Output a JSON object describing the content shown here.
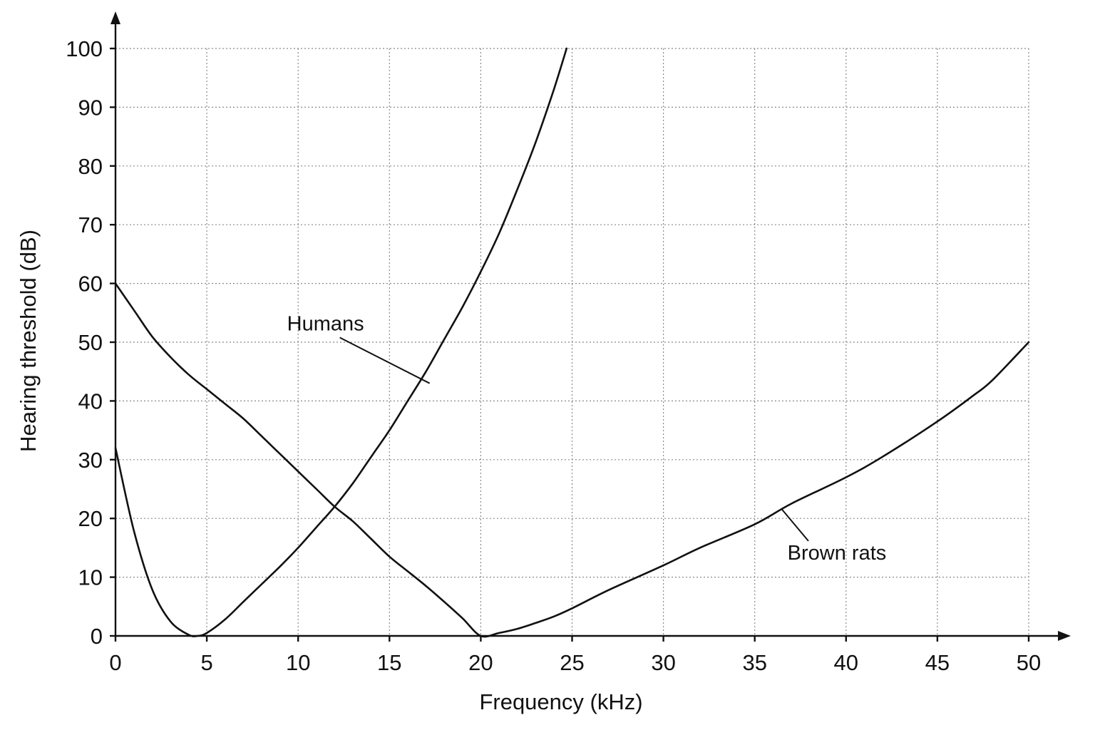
{
  "chart_data": {
    "type": "line",
    "xlabel": "Frequency (kHz)",
    "ylabel": "Hearing threshold (dB)",
    "xlim": [
      0,
      50
    ],
    "ylim": [
      0,
      100
    ],
    "xticks": [
      0,
      5,
      10,
      15,
      20,
      25,
      30,
      35,
      40,
      45,
      50
    ],
    "yticks": [
      0,
      10,
      20,
      30,
      40,
      50,
      60,
      70,
      80,
      90,
      100
    ],
    "grid": true,
    "series": [
      {
        "name": "Humans",
        "points": [
          [
            0,
            32
          ],
          [
            1,
            18
          ],
          [
            2,
            8
          ],
          [
            3,
            2.5
          ],
          [
            4,
            0.2
          ],
          [
            4.5,
            0
          ],
          [
            5,
            0.5
          ],
          [
            6,
            2.8
          ],
          [
            7,
            5.8
          ],
          [
            8,
            8.8
          ],
          [
            9,
            11.8
          ],
          [
            10,
            15
          ],
          [
            11,
            18.5
          ],
          [
            12,
            22
          ],
          [
            13,
            26
          ],
          [
            14,
            30.5
          ],
          [
            15,
            35
          ],
          [
            16,
            40
          ],
          [
            17,
            45
          ],
          [
            18,
            50.5
          ],
          [
            19,
            56
          ],
          [
            20,
            62
          ],
          [
            21,
            68.5
          ],
          [
            22,
            76
          ],
          [
            23,
            84
          ],
          [
            24,
            93
          ],
          [
            24.7,
            100
          ]
        ]
      },
      {
        "name": "Brown rats",
        "points": [
          [
            0,
            60
          ],
          [
            1,
            55.5
          ],
          [
            2,
            51
          ],
          [
            3,
            47.5
          ],
          [
            4,
            44.5
          ],
          [
            5,
            42
          ],
          [
            6,
            39.5
          ],
          [
            7,
            37
          ],
          [
            8,
            34
          ],
          [
            9,
            31
          ],
          [
            10,
            28
          ],
          [
            11,
            25
          ],
          [
            12,
            22
          ],
          [
            13,
            19.5
          ],
          [
            14,
            16.5
          ],
          [
            15,
            13.5
          ],
          [
            16,
            11
          ],
          [
            17,
            8.5
          ],
          [
            18,
            5.8
          ],
          [
            19,
            3
          ],
          [
            20,
            0
          ],
          [
            21,
            0.5
          ],
          [
            22,
            1.2
          ],
          [
            23,
            2.2
          ],
          [
            24,
            3.3
          ],
          [
            25,
            4.7
          ],
          [
            27,
            7.8
          ],
          [
            30,
            12
          ],
          [
            32,
            15
          ],
          [
            35,
            19
          ],
          [
            37,
            22.5
          ],
          [
            40,
            27
          ],
          [
            42,
            30.5
          ],
          [
            45,
            36.5
          ],
          [
            47,
            41
          ],
          [
            48,
            43.5
          ],
          [
            50,
            50
          ]
        ]
      }
    ],
    "annotations": [
      {
        "text": "Humans",
        "series": "Humans",
        "label_at": [
          11.5,
          52
        ],
        "points_to": [
          17.2,
          43
        ]
      },
      {
        "text": "Brown rats",
        "series": "Brown rats",
        "label_at": [
          39.5,
          13
        ],
        "points_to": [
          36.5,
          21.5
        ]
      }
    ]
  }
}
